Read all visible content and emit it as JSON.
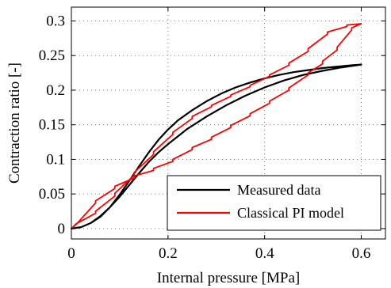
{
  "chart_data": {
    "type": "line",
    "title": "",
    "xlabel": "Internal pressure [MPa]",
    "ylabel": "Contraction ratio [-]",
    "xlim": [
      0,
      0.65
    ],
    "ylim": [
      -0.015,
      0.32
    ],
    "xticks": [
      0,
      0.2,
      0.4,
      0.6
    ],
    "xtick_labels": [
      "0",
      "0.2",
      "0.4",
      "0.6"
    ],
    "yticks": [
      0,
      0.05,
      0.1,
      0.15,
      0.2,
      0.25,
      0.3
    ],
    "ytick_labels": [
      "0",
      "0.05",
      "0.1",
      "0.15",
      "0.2",
      "0.25",
      "0.3"
    ],
    "grid": "dotted",
    "legend_position": "bottom-right",
    "series": [
      {
        "name": "Measured data",
        "color": "#000000",
        "x": [
          0.0,
          0.02,
          0.04,
          0.06,
          0.08,
          0.1,
          0.12,
          0.14,
          0.16,
          0.18,
          0.2,
          0.22,
          0.25,
          0.28,
          0.31,
          0.34,
          0.37,
          0.4,
          0.43,
          0.46,
          0.49,
          0.52,
          0.55,
          0.58,
          0.6,
          0.56,
          0.52,
          0.48,
          0.44,
          0.4,
          0.36,
          0.32,
          0.28,
          0.24,
          0.2,
          0.18,
          0.16,
          0.14,
          0.12,
          0.1,
          0.08,
          0.06,
          0.04,
          0.02,
          0.0
        ],
        "y": [
          0.0,
          0.002,
          0.008,
          0.017,
          0.031,
          0.049,
          0.069,
          0.09,
          0.11,
          0.128,
          0.143,
          0.156,
          0.171,
          0.184,
          0.195,
          0.204,
          0.211,
          0.217,
          0.222,
          0.226,
          0.229,
          0.232,
          0.234,
          0.236,
          0.237,
          0.233,
          0.228,
          0.222,
          0.214,
          0.204,
          0.192,
          0.178,
          0.162,
          0.144,
          0.122,
          0.11,
          0.096,
          0.08,
          0.063,
          0.046,
          0.031,
          0.018,
          0.008,
          0.002,
          0.0
        ]
      },
      {
        "name": "Classical PI model",
        "color": "#ff0000",
        "x": [
          0.0,
          0.01,
          0.05,
          0.05,
          0.09,
          0.09,
          0.13,
          0.13,
          0.17,
          0.17,
          0.21,
          0.21,
          0.25,
          0.25,
          0.29,
          0.29,
          0.33,
          0.33,
          0.37,
          0.37,
          0.41,
          0.41,
          0.45,
          0.45,
          0.49,
          0.49,
          0.53,
          0.53,
          0.57,
          0.57,
          0.6,
          0.58,
          0.58,
          0.55,
          0.55,
          0.52,
          0.52,
          0.49,
          0.49,
          0.45,
          0.45,
          0.41,
          0.41,
          0.37,
          0.37,
          0.33,
          0.33,
          0.29,
          0.29,
          0.25,
          0.25,
          0.21,
          0.21,
          0.17,
          0.17,
          0.13,
          0.13,
          0.09,
          0.09,
          0.05,
          0.05,
          0.01,
          0.0
        ],
        "y": [
          0.0,
          0.007,
          0.022,
          0.025,
          0.047,
          0.051,
          0.077,
          0.081,
          0.107,
          0.111,
          0.136,
          0.139,
          0.159,
          0.162,
          0.176,
          0.178,
          0.191,
          0.193,
          0.205,
          0.207,
          0.22,
          0.222,
          0.236,
          0.239,
          0.256,
          0.26,
          0.281,
          0.284,
          0.292,
          0.294,
          0.296,
          0.29,
          0.287,
          0.262,
          0.258,
          0.242,
          0.238,
          0.225,
          0.222,
          0.203,
          0.2,
          0.184,
          0.181,
          0.166,
          0.163,
          0.149,
          0.146,
          0.132,
          0.129,
          0.117,
          0.114,
          0.1,
          0.097,
          0.087,
          0.084,
          0.076,
          0.073,
          0.061,
          0.058,
          0.04,
          0.037,
          0.006,
          0.0
        ]
      }
    ]
  }
}
